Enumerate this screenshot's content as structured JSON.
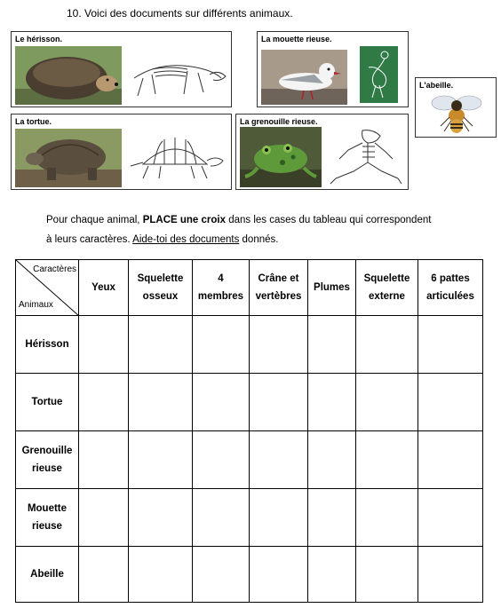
{
  "question": {
    "title": "10. Voici des documents sur différents animaux."
  },
  "cards": {
    "herisson": "Le hérisson.",
    "mouette": "La mouette rieuse.",
    "abeille": "L'abeille.",
    "tortue": "La tortue.",
    "grenouille": "La grenouille rieuse."
  },
  "instructions": {
    "line1_pre": "Pour chaque animal, ",
    "line1_bold": "PLACE une croix",
    "line1_post": " dans les cases du tableau qui correspondent",
    "line2_pre": "à leurs caractères. ",
    "line2_link": "Aide-toi des documents",
    "line2_post": " donnés."
  },
  "table": {
    "corner_top": "Caractères",
    "corner_bottom": "Animaux",
    "headers": [
      [
        "Yeux"
      ],
      [
        "Squelette",
        "osseux"
      ],
      [
        "4",
        "membres"
      ],
      [
        "Crâne et",
        "vertèbres"
      ],
      [
        "Plumes"
      ],
      [
        "Squelette",
        "externe"
      ],
      [
        "6 pattes",
        "articulées"
      ]
    ],
    "rows": [
      [
        "Hérisson"
      ],
      [
        "Tortue"
      ],
      [
        "Grenouille",
        "rieuse"
      ],
      [
        "Mouette",
        "rieuse"
      ],
      [
        "Abeille"
      ]
    ]
  },
  "colors": {
    "border": "#000000",
    "card_border": "#333333"
  }
}
